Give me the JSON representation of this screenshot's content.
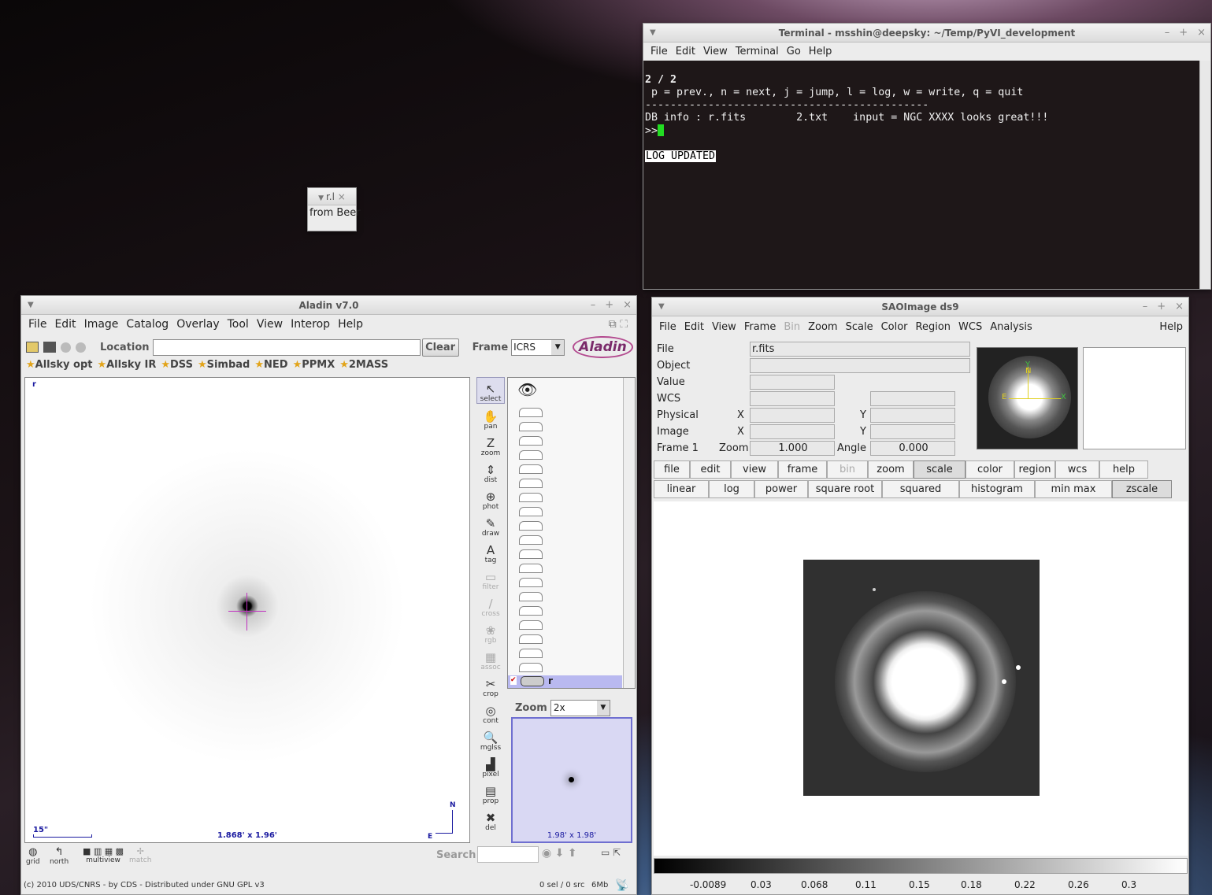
{
  "terminal": {
    "title": "Terminal - msshin@deepsky: ~/Temp/PyVI_development",
    "menu": [
      "File",
      "Edit",
      "View",
      "Terminal",
      "Go",
      "Help"
    ],
    "lines": [
      "2 / 2",
      " p = prev., n = next, j = jump, l = log, w = write, q = quit",
      "---------------------------------------------",
      "DB info : r.fits        2.txt    input = NGC XXXX looks great!!!",
      "",
      ">>"
    ],
    "log_msg": "LOG UPDATED"
  },
  "small_window": {
    "title": "r.l",
    "body": "from Beer"
  },
  "aladin": {
    "title": "Aladin v7.0",
    "menu": [
      "File",
      "Edit",
      "Image",
      "Catalog",
      "Overlay",
      "Tool",
      "View",
      "Interop",
      "Help"
    ],
    "location_label": "Location",
    "location_value": "",
    "clear_label": "Clear",
    "frame_label": "Frame",
    "frame_value": "ICRS",
    "logo": "Aladin",
    "links": [
      "Allsky opt",
      "Allsky IR",
      "DSS",
      "Simbad",
      "NED",
      "PPMX",
      "2MASS"
    ],
    "view_label": "r",
    "scale_bar": "15\"",
    "fov": "1.868' x 1.96'",
    "compass_n": "N",
    "compass_e": "E",
    "tools": [
      {
        "g": "↖",
        "l": "select"
      },
      {
        "g": "✋",
        "l": "pan"
      },
      {
        "g": "Z",
        "l": "zoom"
      },
      {
        "g": "⇕",
        "l": "dist"
      },
      {
        "g": "⊕",
        "l": "phot"
      },
      {
        "g": "✎",
        "l": "draw"
      },
      {
        "g": "A",
        "l": "tag"
      },
      {
        "g": "▭",
        "l": "filter"
      },
      {
        "g": "∕",
        "l": "cross"
      },
      {
        "g": "❀",
        "l": "rgb"
      },
      {
        "g": "▦",
        "l": "assoc"
      },
      {
        "g": "✂",
        "l": "crop"
      },
      {
        "g": "◎",
        "l": "cont"
      },
      {
        "g": "🔍",
        "l": "mglss"
      },
      {
        "g": "▟",
        "l": "pixel"
      },
      {
        "g": "▤",
        "l": "prop"
      },
      {
        "g": "✖",
        "l": "del"
      }
    ],
    "plane_name": "r",
    "zoom_label": "Zoom",
    "zoom_value": "2x",
    "zoom_fov": "1.98' x 1.98'",
    "bottom_tools": [
      "grid",
      "north",
      "multiview",
      "match"
    ],
    "search_label": "Search",
    "status_left": "(c) 2010 UDS/CNRS - by CDS - Distributed under GNU GPL v3",
    "status_sel": "0 sel / 0 src",
    "status_mem": "6Mb"
  },
  "ds9": {
    "title": "SAOImage ds9",
    "menu": [
      "File",
      "Edit",
      "View",
      "Frame",
      "Bin",
      "Zoom",
      "Scale",
      "Color",
      "Region",
      "WCS",
      "Analysis"
    ],
    "menu_help": "Help",
    "info": {
      "file_label": "File",
      "file_value": "r.fits",
      "object_label": "Object",
      "value_label": "Value",
      "wcs_label": "WCS",
      "physical_label": "Physical",
      "image_label": "Image",
      "x_label": "X",
      "y_label": "Y",
      "frame_label": "Frame 1",
      "zoom_label": "Zoom",
      "zoom_value": "1.000",
      "angle_label": "Angle",
      "angle_value": "0.000"
    },
    "buttons": [
      "file",
      "edit",
      "view",
      "frame",
      "bin",
      "zoom",
      "scale",
      "color",
      "region",
      "wcs",
      "help"
    ],
    "scale_buttons": [
      "linear",
      "log",
      "power",
      "square root",
      "squared",
      "histogram",
      "min max",
      "zscale"
    ],
    "colorbar_ticks": [
      "-0.0089",
      "0.03",
      "0.068",
      "0.11",
      "0.15",
      "0.18",
      "0.22",
      "0.26",
      "0.3"
    ],
    "compass_n": "N",
    "compass_e": "E",
    "compass_x": "X",
    "compass_y": "Y"
  }
}
